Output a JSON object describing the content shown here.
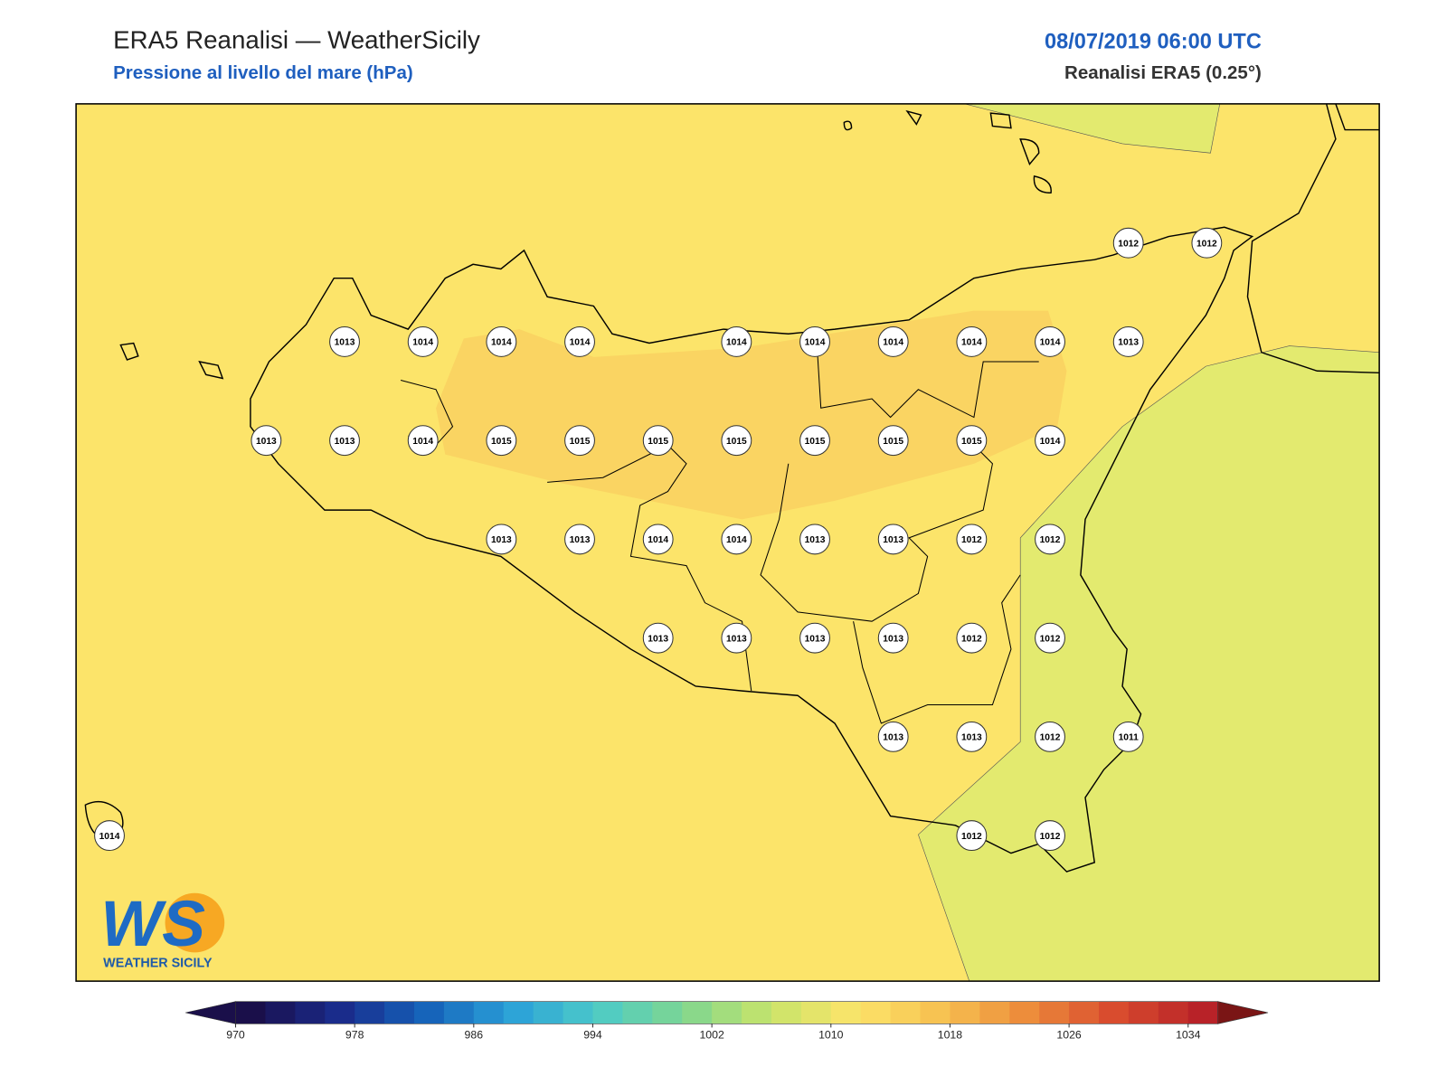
{
  "header": {
    "title": "ERA5 Reanalisi — WeatherSicily",
    "subtitle": "Pressione al livello del mare (hPa)",
    "date": "08/07/2019 06:00 UTC",
    "source": "Reanalisi ERA5 (0.25°)"
  },
  "stations": [
    [
      null,
      null,
      null,
      null,
      null,
      null,
      null,
      null,
      null,
      null,
      null,
      null,
      null,
      1012,
      1012
    ],
    [
      null,
      null,
      null,
      1013,
      1014,
      1014,
      1014,
      null,
      1014,
      1014,
      1014,
      1014,
      1014,
      1013,
      null
    ],
    [
      null,
      null,
      1013,
      1013,
      1014,
      1015,
      1015,
      1015,
      1015,
      1015,
      1015,
      1015,
      1014,
      null,
      null
    ],
    [
      null,
      null,
      null,
      null,
      null,
      1013,
      1013,
      1014,
      1014,
      1013,
      1013,
      1012,
      1012,
      null,
      null
    ],
    [
      null,
      null,
      null,
      null,
      null,
      null,
      null,
      1013,
      1013,
      1013,
      1013,
      1012,
      1012,
      null,
      null
    ],
    [
      null,
      null,
      null,
      null,
      null,
      null,
      null,
      null,
      null,
      null,
      1013,
      1013,
      1012,
      1011,
      null
    ],
    [
      1014,
      null,
      null,
      null,
      null,
      null,
      null,
      null,
      null,
      null,
      null,
      1012,
      1012,
      null,
      null
    ]
  ],
  "colorbar": {
    "lim": [
      970,
      1036
    ],
    "ticks": [
      970,
      978,
      986,
      994,
      1002,
      1010,
      1018,
      1026,
      1034
    ]
  },
  "logo": {
    "mark": "WS",
    "caption": "WEATHER SICILY"
  }
}
